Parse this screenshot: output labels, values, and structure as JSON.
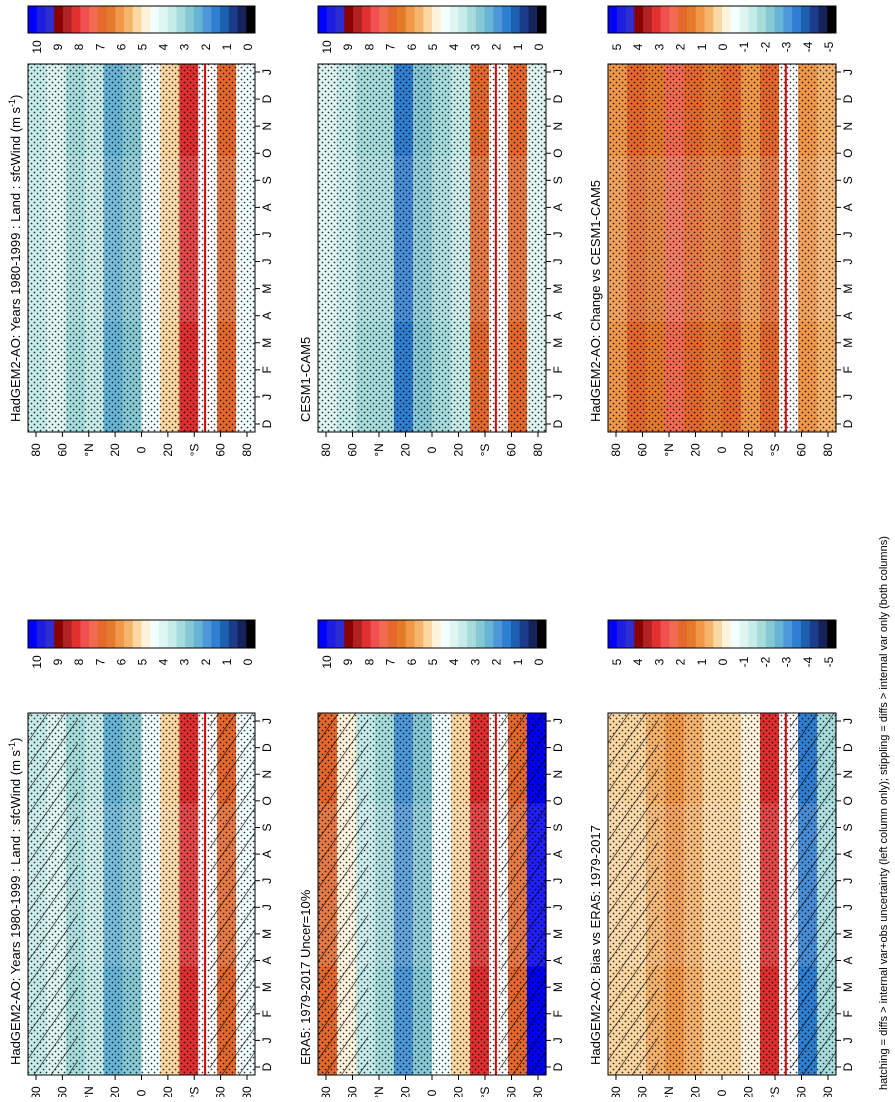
{
  "figure": {
    "footnote": "hatching = diffs > internal var+obs uncertainty (left column only); stippling = diffs > internal var only (both columns)"
  },
  "colorbars": {
    "absolute": {
      "labels": [
        "10",
        "9",
        "8",
        "7",
        "6",
        "5",
        "4",
        "3",
        "2",
        "1",
        "0"
      ],
      "colors": [
        "#0000ff",
        "#1e1ee0",
        "#2d2dd0",
        "#8b0000",
        "#b22222",
        "#e03030",
        "#f05050",
        "#f26a4f",
        "#e5692c",
        "#e57a2c",
        "#f19748",
        "#f5b36b",
        "#fbd7a1",
        "#fff3dc",
        "#f2fffe",
        "#dff5f2",
        "#c6ecea",
        "#a7dcdc",
        "#86c8d4",
        "#66b4d6",
        "#4d98d8",
        "#2f7fd3",
        "#1f5fb0",
        "#1b3c8a",
        "#14245a",
        "#000000"
      ]
    },
    "diff": {
      "labels": [
        "5",
        "4",
        "3",
        "2",
        "1",
        "0",
        "-1",
        "-2",
        "-3",
        "-4",
        "-5"
      ],
      "colors": [
        "#0000ff",
        "#1e1ee0",
        "#2d2dd0",
        "#8b0000",
        "#b22222",
        "#e03030",
        "#f05050",
        "#f26a4f",
        "#e5692c",
        "#e57a2c",
        "#f19748",
        "#f5b36b",
        "#fbd7a1",
        "#fff3dc",
        "#f2fffe",
        "#dff5f2",
        "#c6ecea",
        "#a7dcdc",
        "#86c8d4",
        "#66b4d6",
        "#4d98d8",
        "#2f7fd3",
        "#1f5fb0",
        "#1b3c8a",
        "#14245a",
        "#000000"
      ]
    }
  },
  "panels": [
    {
      "id": "p1",
      "title": "HadGEM2-AO: Years 1980-1999 : Land : sfcWind (m s",
      "title_sup": "-1",
      "title_end": ")",
      "colorbar": "absolute",
      "hatch": true
    },
    {
      "id": "p2",
      "title": "HadGEM2-AO: Years 1980-1999 : Land : sfcWind (m s",
      "title_sup": "-1",
      "title_end": ")",
      "colorbar": "absolute",
      "hatch": false
    },
    {
      "id": "p3",
      "title": "ERA5: 1979-2017 Uncer=10%",
      "title_sup": "",
      "title_end": "",
      "colorbar": "absolute",
      "hatch": true
    },
    {
      "id": "p4",
      "title": "CESM1-CAM5",
      "title_sup": "",
      "title_end": "",
      "colorbar": "absolute",
      "hatch": false
    },
    {
      "id": "p5",
      "title": "HadGEM2-AO: Bias vs ERA5: 1979-2017",
      "title_sup": "",
      "title_end": "",
      "colorbar": "diff",
      "hatch": true
    },
    {
      "id": "p6",
      "title": "HadGEM2-AO: Change vs CESM1-CAM5",
      "title_sup": "",
      "title_end": "",
      "colorbar": "diff",
      "hatch": false
    }
  ],
  "axes": {
    "lat_ticks": [
      "80",
      "60",
      "°N",
      "20",
      "0",
      "20",
      "°S",
      "60",
      "80"
    ],
    "month_ticks": [
      "D",
      "J",
      "F",
      "M",
      "A",
      "M",
      "J",
      "J",
      "A",
      "S",
      "O",
      "N",
      "D",
      "J"
    ]
  },
  "chart_data": {
    "type": "heatmap",
    "x_dimension": "month",
    "y_dimension": "latitude",
    "x": [
      "D",
      "J",
      "F",
      "M",
      "A",
      "M",
      "J",
      "J",
      "A",
      "S",
      "O",
      "N",
      "D",
      "J"
    ],
    "y": [
      "80",
      "60",
      "°N",
      "20",
      "0",
      "20",
      "°S",
      "60",
      "80"
    ],
    "panels": [
      {
        "title": "HadGEM2-AO: Years 1980-1999 : Land : sfcWind (m s-1)",
        "colorbar_ticks": [
          "10",
          "9",
          "8",
          "7",
          "6",
          "5",
          "4",
          "3",
          "2",
          "1",
          "0"
        ],
        "band_colors": [
          "#c6ecea",
          "#dff5f2",
          "#a7dcdc",
          "#c6ecea",
          "#66b4d6",
          "#86c8d4",
          "#f2fffe",
          "#fbd7a1",
          "#e03030",
          "#ffffff",
          "#e5692c",
          "#f2fffe"
        ]
      },
      {
        "title": "HadGEM2-AO: Years 1980-1999 : Land : sfcWind (m s-1)",
        "colorbar_ticks": [
          "10",
          "9",
          "8",
          "7",
          "6",
          "5",
          "4",
          "3",
          "2",
          "1",
          "0"
        ],
        "band_colors": [
          "#c6ecea",
          "#dff5f2",
          "#a7dcdc",
          "#c6ecea",
          "#66b4d6",
          "#86c8d4",
          "#f2fffe",
          "#fbd7a1",
          "#e03030",
          "#ffffff",
          "#e5692c",
          "#f2fffe"
        ]
      },
      {
        "title": "ERA5: 1979-2017 Uncer=10%",
        "colorbar_ticks": [
          "10",
          "9",
          "8",
          "7",
          "6",
          "5",
          "4",
          "3",
          "2",
          "1",
          "0"
        ],
        "band_colors": [
          "#e5692c",
          "#fff3dc",
          "#c6ecea",
          "#a7dcdc",
          "#4d98d8",
          "#86c8d4",
          "#f2fffe",
          "#fbd7a1",
          "#e03030",
          "#ffffff",
          "#e5692c",
          "#0000ff"
        ]
      },
      {
        "title": "CESM1-CAM5",
        "colorbar_ticks": [
          "10",
          "9",
          "8",
          "7",
          "6",
          "5",
          "4",
          "3",
          "2",
          "1",
          "0"
        ],
        "band_colors": [
          "#dff5f2",
          "#c6ecea",
          "#a7dcdc",
          "#a7dcdc",
          "#2f7fd3",
          "#86c8d4",
          "#a7dcdc",
          "#c6ecea",
          "#e5692c",
          "#ffffff",
          "#e5692c",
          "#dff5f2"
        ]
      },
      {
        "title": "HadGEM2-AO: Bias vs ERA5: 1979-2017",
        "colorbar_ticks": [
          "5",
          "4",
          "3",
          "2",
          "1",
          "0",
          "-1",
          "-2",
          "-3",
          "-4",
          "-5"
        ],
        "band_colors": [
          "#fbd7a1",
          "#fbd7a1",
          "#f5b36b",
          "#f19748",
          "#f5b36b",
          "#fbd7a1",
          "#fbd7a1",
          "#fff3dc",
          "#e03030",
          "#ffffff",
          "#2f7fd3",
          "#a7dcdc"
        ]
      },
      {
        "title": "HadGEM2-AO: Change vs CESM1-CAM5",
        "colorbar_ticks": [
          "5",
          "4",
          "3",
          "2",
          "1",
          "0",
          "-1",
          "-2",
          "-3",
          "-4",
          "-5"
        ],
        "band_colors": [
          "#f19748",
          "#e5692c",
          "#e57a2c",
          "#f26a4f",
          "#e5692c",
          "#e57a2c",
          "#e5692c",
          "#f19748",
          "#e5692c",
          "#ffffff",
          "#f19748",
          "#f5b36b"
        ]
      }
    ]
  }
}
